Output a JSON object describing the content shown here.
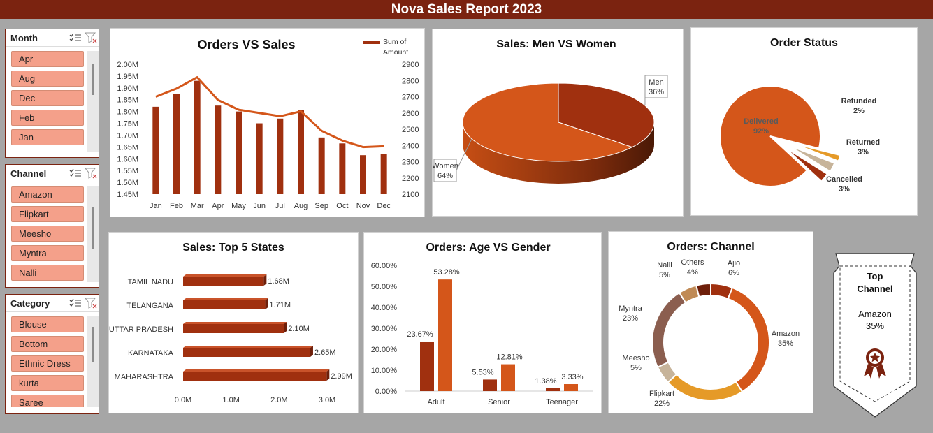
{
  "header": {
    "title": "Nova Sales Report 2023"
  },
  "slicers": [
    {
      "title": "Month",
      "items": [
        "Apr",
        "Aug",
        "Dec",
        "Feb",
        "Jan"
      ]
    },
    {
      "title": "Channel",
      "items": [
        "Amazon",
        "Flipkart",
        "Meesho",
        "Myntra",
        "Nalli"
      ]
    },
    {
      "title": "Category",
      "items": [
        "Blouse",
        "Bottom",
        "Ethnic Dress",
        "kurta",
        "Saree"
      ]
    }
  ],
  "top_channel": {
    "title_line1": "Top",
    "title_line2": "Channel",
    "name": "Amazon",
    "share": "35%"
  },
  "colors": {
    "dark": "#a0300f",
    "orange": "#d4561a",
    "gold": "#e59a28",
    "brown": "#8b5e4f",
    "tan": "#c08a55",
    "beige": "#c7b49a",
    "banner": "#7b2310"
  },
  "chart_data": [
    {
      "type": "line",
      "title": "Orders VS Sales",
      "categories": [
        "Jan",
        "Feb",
        "Mar",
        "Apr",
        "May",
        "Jun",
        "Jul",
        "Aug",
        "Sep",
        "Oct",
        "Nov",
        "Dec"
      ],
      "series": [
        {
          "name": "",
          "chart": "bar",
          "axis": "left",
          "values": [
            1.82,
            1.875,
            1.93,
            1.825,
            1.8,
            1.75,
            1.77,
            1.805,
            1.69,
            1.665,
            1.615,
            1.62
          ]
        },
        {
          "name": "Sum of Amount",
          "chart": "line",
          "axis": "right",
          "values": [
            2700,
            2750,
            2820,
            2680,
            2620,
            2600,
            2580,
            2610,
            2490,
            2430,
            2390,
            2395
          ]
        }
      ],
      "left_ticks": [
        "2.00M",
        "1.95M",
        "1.90M",
        "1.85M",
        "1.80M",
        "1.75M",
        "1.70M",
        "1.65M",
        "1.60M",
        "1.55M",
        "1.50M",
        "1.45M"
      ],
      "right_ticks": [
        "2900",
        "2800",
        "2700",
        "2600",
        "2500",
        "2400",
        "2300",
        "2200",
        "2100"
      ],
      "ylim": [
        1.45,
        2.0
      ],
      "y2lim": [
        2100,
        2900
      ],
      "legend": "top-right"
    },
    {
      "type": "pie",
      "title": "Sales: Men VS Women",
      "labels": [
        "Men",
        "Women"
      ],
      "values": [
        36,
        64
      ],
      "value_labels": [
        "36%",
        "64%"
      ]
    },
    {
      "type": "pie",
      "title": "Order Status",
      "labels": [
        "Delivered",
        "Refunded",
        "Returned",
        "Cancelled"
      ],
      "values": [
        92,
        2,
        3,
        3
      ],
      "value_labels": [
        "92%",
        "2%",
        "3%",
        "3%"
      ]
    },
    {
      "type": "bar",
      "orientation": "horizontal",
      "title": "Sales: Top 5 States",
      "categories": [
        "TAMIL NADU",
        "TELANGANA",
        "UTTAR PRADESH",
        "KARNATAKA",
        "MAHARASHTRA"
      ],
      "values": [
        1.68,
        1.71,
        2.1,
        2.65,
        2.99
      ],
      "value_labels": [
        "1.68M",
        "1.71M",
        "2.10M",
        "2.65M",
        "2.99M"
      ],
      "x_ticks": [
        "0.0M",
        "1.0M",
        "2.0M",
        "3.0M"
      ],
      "xlim": [
        0,
        3.0
      ]
    },
    {
      "type": "bar",
      "title": "Orders: Age VS Gender",
      "categories": [
        "Adult",
        "Senior",
        "Teenager"
      ],
      "series": [
        {
          "name": "",
          "values": [
            23.67,
            5.53,
            1.38
          ],
          "value_labels": [
            "23.67%",
            "5.53%",
            "1.38%"
          ]
        },
        {
          "name": "",
          "values": [
            53.28,
            12.81,
            3.33
          ],
          "value_labels": [
            "53.28%",
            "12.81%",
            "3.33%"
          ]
        }
      ],
      "y_ticks": [
        "60.00%",
        "50.00%",
        "40.00%",
        "30.00%",
        "20.00%",
        "10.00%",
        "0.00%"
      ],
      "ylim": [
        0,
        60
      ]
    },
    {
      "type": "pie",
      "title": "Orders: Channel",
      "labels": [
        "Ajio",
        "Amazon",
        "Flipkart",
        "Meesho",
        "Myntra",
        "Nalli",
        "Others"
      ],
      "values": [
        6,
        35,
        22,
        5,
        23,
        5,
        4
      ],
      "value_labels": [
        "6%",
        "35%",
        "22%",
        "5%",
        "23%",
        "5%",
        "4%"
      ]
    }
  ]
}
